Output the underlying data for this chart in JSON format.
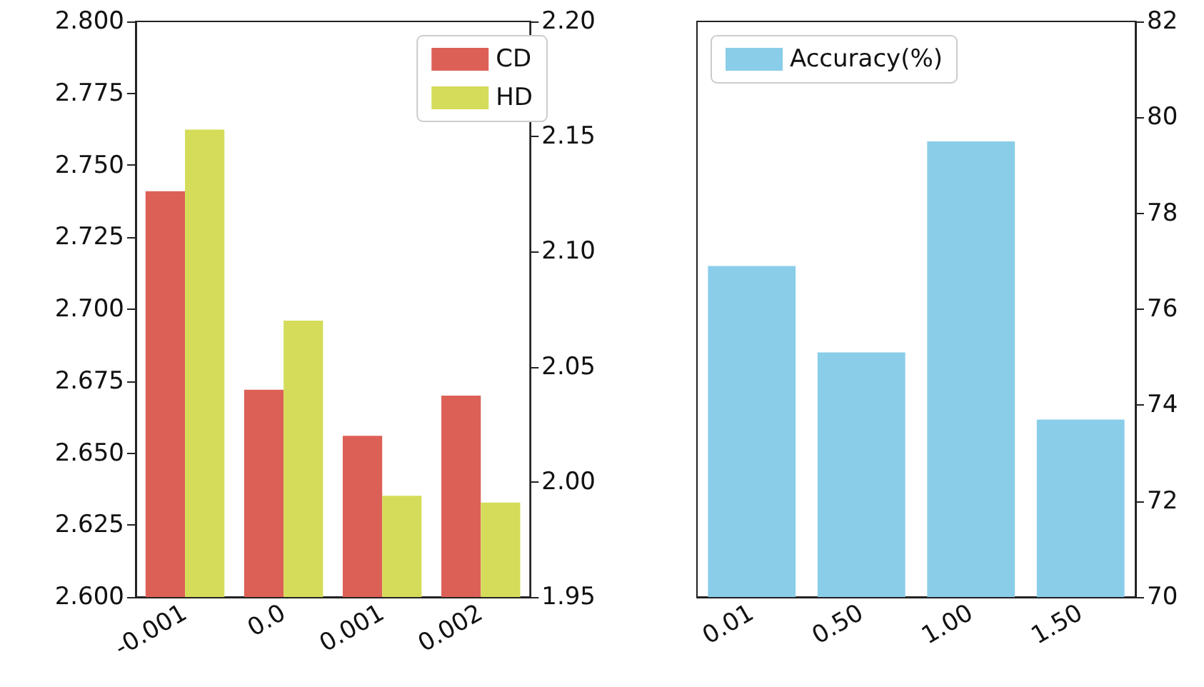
{
  "chart_data": [
    {
      "type": "bar",
      "categories": [
        "-0.001",
        "0.0",
        "0.001",
        "0.002"
      ],
      "series": [
        {
          "name": "CD",
          "color": "#dd6057",
          "values": [
            2.741,
            2.672,
            2.656,
            2.67
          ]
        },
        {
          "name": "HD",
          "color": "#d5dc5a",
          "axis": "y2",
          "values": [
            2.153,
            2.07,
            1.994,
            1.991
          ]
        }
      ],
      "ylim": [
        2.6,
        2.8
      ],
      "yticks": [
        {
          "value": 2.6,
          "label": "2.600"
        },
        {
          "value": 2.625,
          "label": "2.625"
        },
        {
          "value": 2.65,
          "label": "2.650"
        },
        {
          "value": 2.675,
          "label": "2.675"
        },
        {
          "value": 2.7,
          "label": "2.700"
        },
        {
          "value": 2.725,
          "label": "2.725"
        },
        {
          "value": 2.75,
          "label": "2.750"
        },
        {
          "value": 2.775,
          "label": "2.775"
        },
        {
          "value": 2.8,
          "label": "2.800"
        }
      ],
      "y2lim": [
        1.95,
        2.2
      ],
      "y2ticks": [
        1.95,
        {
          "value": 2,
          "label": "2.00"
        },
        2.05,
        {
          "value": 2.1,
          "label": "2.10"
        },
        2.15,
        {
          "value": 2.2,
          "label": "2.20"
        }
      ],
      "legend": "top right",
      "grid": false
    },
    {
      "type": "bar",
      "categories": [
        "0.01",
        "0.50",
        "1.00",
        "1.50"
      ],
      "series": [
        {
          "name": "Accuracy(%)",
          "color": "#89cde9",
          "axis": "y2",
          "values": [
            76.9,
            75.1,
            79.5,
            73.7
          ]
        }
      ],
      "y2lim": [
        70,
        82
      ],
      "y2ticks": [
        70,
        72,
        74,
        76,
        78,
        80,
        82
      ],
      "legend": "top left",
      "grid": false
    }
  ]
}
